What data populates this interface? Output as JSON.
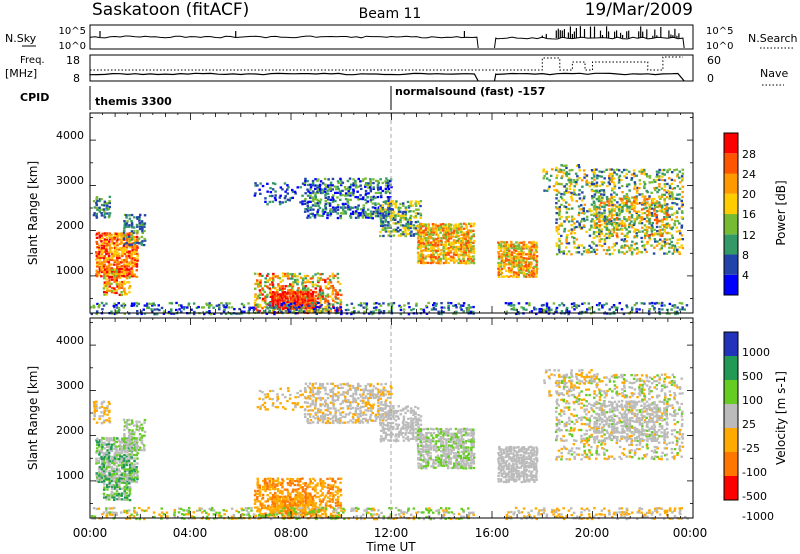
{
  "header": {
    "title": "Saskatoon (fitACF)",
    "beam": "Beam 11",
    "date": "19/Mar/2009"
  },
  "panel_labels": {
    "nsky": "N.Sky",
    "nsearch": "N.Search",
    "freq_line1": "Freq.",
    "freq_line2": "[MHz]",
    "nave": "Nave",
    "cpid": "CPID"
  },
  "nsky_ticks": [
    "10^5",
    "10^0"
  ],
  "nsearch_ticks": [
    "10^5",
    "10^0"
  ],
  "freq_ticks": [
    "18",
    "8"
  ],
  "nave_ticks": [
    "60",
    "0"
  ],
  "cpid_segments": [
    {
      "label": "themis 3300",
      "start_hour": 0
    },
    {
      "label": "normalsound (fast) -157",
      "start_hour": 12
    }
  ],
  "colors": {
    "power": [
      "#0000ff",
      "#2244aa",
      "#339966",
      "#77bb33",
      "#ffcc00",
      "#ff9900",
      "#ff5500",
      "#ff0000"
    ],
    "velocity": [
      "#2233bb",
      "#229955",
      "#66cc22",
      "#bbbbbb",
      "#ffaa00",
      "#ff7700",
      "#ff0000"
    ]
  },
  "chart_data": [
    {
      "type": "heatmap",
      "ylabel": "Slant Range [km]",
      "ylim": [
        180,
        4600
      ],
      "xlim": [
        0,
        24
      ],
      "y_ticks": [
        "1000",
        "2000",
        "3000",
        "4000"
      ],
      "colorbar_label": "Power [dB]",
      "colorbar_ticks": [
        "4",
        "8",
        "12",
        "16",
        "20",
        "24",
        "28"
      ]
    },
    {
      "type": "heatmap",
      "ylabel": "Slant Range [km]",
      "ylim": [
        180,
        4600
      ],
      "xlim": [
        0,
        24
      ],
      "y_ticks": [
        "1000",
        "2000",
        "3000",
        "4000"
      ],
      "colorbar_label": "Velocity [m s-1]",
      "colorbar_ticks": [
        "1000",
        "500",
        "100",
        "25",
        "-25",
        "-100",
        "-500",
        "-1000"
      ]
    }
  ],
  "x_ticks": [
    "00:00",
    "04:00",
    "08:00",
    "12:00",
    "16:00",
    "20:00",
    "00:00"
  ],
  "xlabel": "Time UT"
}
